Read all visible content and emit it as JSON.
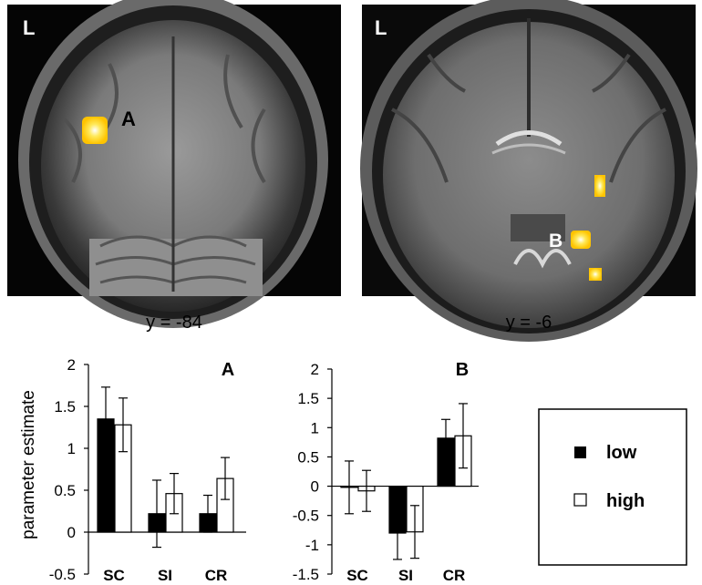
{
  "panels": {
    "left": {
      "corner_label": "L",
      "marker_label": "A",
      "caption": "y = -84"
    },
    "right": {
      "corner_label": "L",
      "marker_label": "B",
      "caption": "y = -6"
    }
  },
  "colors": {
    "low": "#000000",
    "high": "#ffffff",
    "activation": "#ffd21a"
  },
  "legend": {
    "items": [
      {
        "key": "low",
        "label": "low"
      },
      {
        "key": "high",
        "label": "high"
      }
    ]
  },
  "chart_data": [
    {
      "type": "bar",
      "panel_label": "A",
      "ylabel": "parameter estimate",
      "categories": [
        "SC",
        "SI",
        "CR"
      ],
      "ylim": [
        -0.5,
        2
      ],
      "yticks": [
        "-0.5",
        "0",
        "0.5",
        "1",
        "1.5",
        "2"
      ],
      "series": [
        {
          "name": "low",
          "values": [
            1.35,
            0.22,
            0.22
          ],
          "errors": [
            0.38,
            0.4,
            0.22
          ]
        },
        {
          "name": "high",
          "values": [
            1.28,
            0.46,
            0.64
          ],
          "errors": [
            0.32,
            0.24,
            0.25
          ]
        }
      ]
    },
    {
      "type": "bar",
      "panel_label": "B",
      "ylabel": "",
      "categories": [
        "SC",
        "SI",
        "CR"
      ],
      "ylim": [
        -1.5,
        2
      ],
      "yticks": [
        "-1.5",
        "-1",
        "-0.5",
        "0",
        "0.5",
        "1",
        "1.5",
        "2"
      ],
      "series": [
        {
          "name": "low",
          "values": [
            -0.02,
            -0.8,
            0.82
          ],
          "errors": [
            0.45,
            0.45,
            0.32
          ]
        },
        {
          "name": "high",
          "values": [
            -0.08,
            -0.78,
            0.86
          ],
          "errors": [
            0.35,
            0.45,
            0.55
          ]
        }
      ]
    }
  ]
}
